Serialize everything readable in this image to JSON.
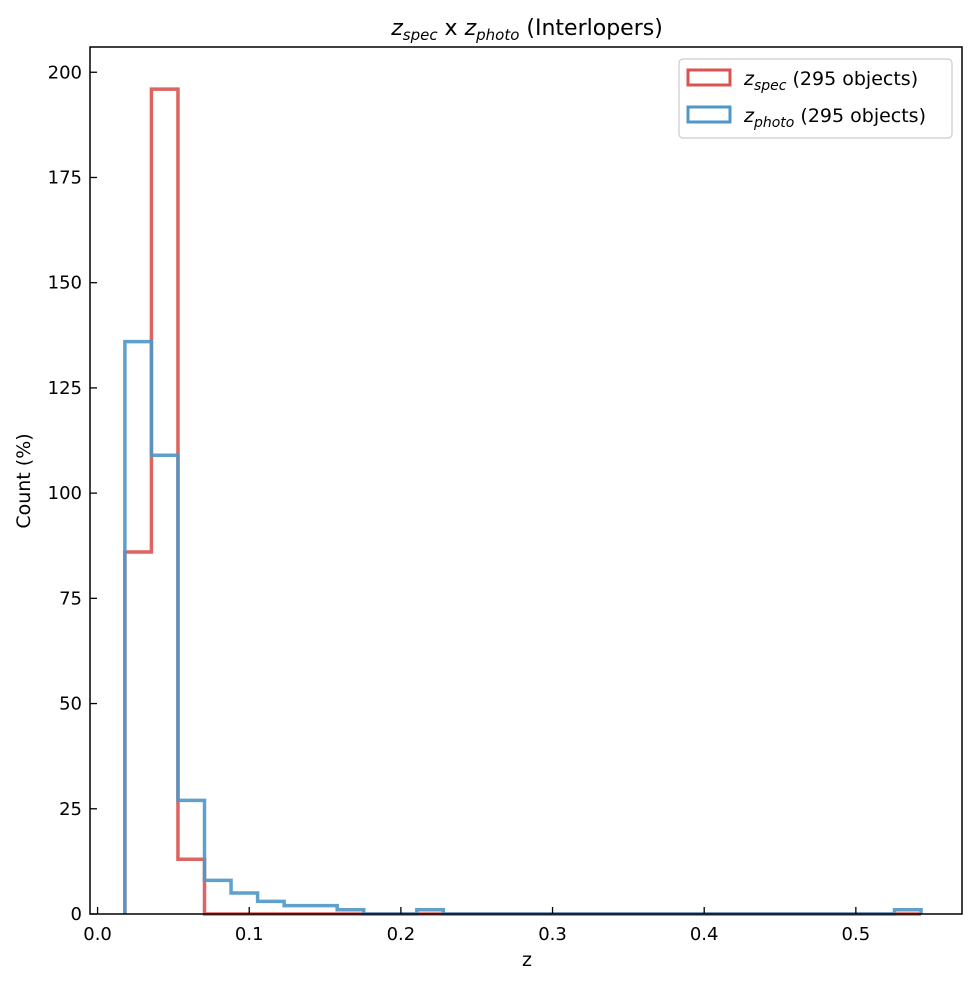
{
  "chart_data": {
    "type": "histogram",
    "title": {
      "var1": "z",
      "sub1": "spec",
      "mid": " x ",
      "var2": "z",
      "sub2": "photo",
      "suffix": " (Interlopers)"
    },
    "xlabel": "z",
    "ylabel": "Count (%)",
    "xlim": [
      -0.005,
      0.57
    ],
    "ylim": [
      0,
      206
    ],
    "xticks": [
      0.0,
      0.1,
      0.2,
      0.3,
      0.4,
      0.5
    ],
    "xtick_labels": [
      "0.0",
      "0.1",
      "0.2",
      "0.3",
      "0.4",
      "0.5"
    ],
    "yticks": [
      0,
      25,
      50,
      75,
      100,
      125,
      150,
      175,
      200
    ],
    "ytick_labels": [
      "0",
      "25",
      "50",
      "75",
      "100",
      "125",
      "150",
      "175",
      "200"
    ],
    "bin_edges": [
      0.018,
      0.0355,
      0.053,
      0.0705,
      0.088,
      0.1055,
      0.123,
      0.1405,
      0.158,
      0.1755,
      0.193,
      0.2105,
      0.228,
      0.2455,
      0.263,
      0.2805,
      0.298,
      0.3155,
      0.333,
      0.3505,
      0.368,
      0.3855,
      0.403,
      0.4205,
      0.438,
      0.4555,
      0.473,
      0.4905,
      0.508,
      0.5255,
      0.543
    ],
    "series": [
      {
        "name_var": "z",
        "name_sub": "spec",
        "legend_suffix": " (295 objects)",
        "color": "#d9534f",
        "values": [
          86,
          196,
          13,
          0,
          0,
          0,
          0,
          0,
          0,
          0,
          0,
          0,
          0,
          0,
          0,
          0,
          0,
          0,
          0,
          0,
          0,
          0,
          0,
          0,
          0,
          0,
          0,
          0,
          0,
          0
        ]
      },
      {
        "name_var": "z",
        "name_sub": "photo",
        "legend_suffix": " (295 objects)",
        "color": "#4f97c6",
        "values": [
          136,
          109,
          27,
          8,
          5,
          3,
          2,
          2,
          1,
          0,
          0,
          1,
          0,
          0,
          0,
          0,
          0,
          0,
          0,
          0,
          0,
          0,
          0,
          0,
          0,
          0,
          0,
          0,
          0,
          1
        ]
      }
    ],
    "legend_position": "top-right",
    "grid": false
  }
}
